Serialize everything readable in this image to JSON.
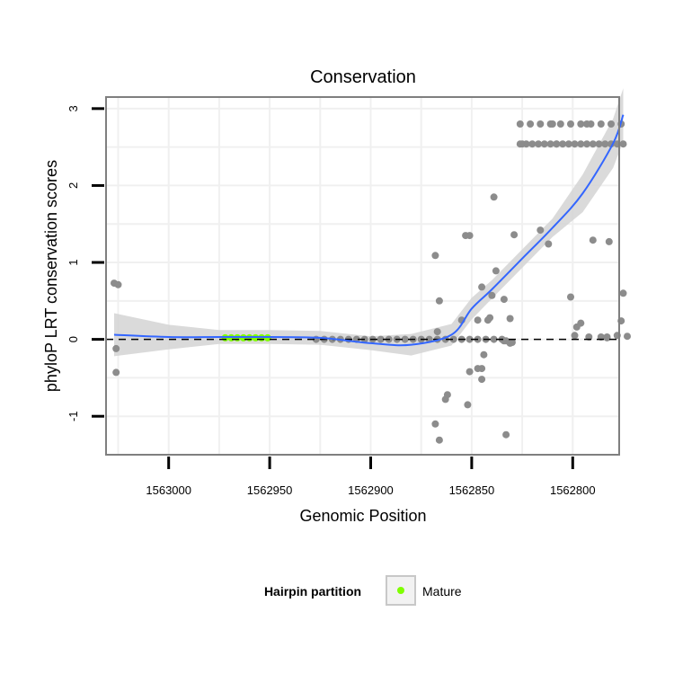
{
  "chart_data": {
    "type": "scatter",
    "title": "Conservation",
    "xlabel": "Genomic Position",
    "ylabel": "phyloP LRT conservation scores",
    "x_reversed": true,
    "xlim": [
      1562777,
      1563031
    ],
    "ylim": [
      -1.5,
      3.15
    ],
    "x_ticks": [
      1563000,
      1562950,
      1562900,
      1562850,
      1562800
    ],
    "y_ticks": [
      -1,
      0,
      1,
      2,
      3
    ],
    "grid": true,
    "reference_line_y": 0,
    "legend": {
      "title": "Hairpin partition",
      "entries": [
        "Mature"
      ],
      "position": "bottom"
    },
    "colors": {
      "points": "#8c8c8c",
      "mature": "#7fff00",
      "smooth": "#3366ff",
      "ribbon": "#d3d3d3",
      "panel_border": "#7f7f7f",
      "grid": "#f0f0f0"
    },
    "series": [
      {
        "type": "points",
        "x": [
          1563027,
          1563025,
          1563026,
          1563026,
          1562868,
          1562866,
          1562868,
          1562866,
          1562867,
          1562863,
          1562862,
          1562853,
          1562851,
          1562855,
          1562852,
          1562845,
          1562842,
          1562839,
          1562840,
          1562838,
          1562834,
          1562831,
          1562830,
          1562833,
          1562831,
          1562829,
          1562833,
          1562847,
          1562845,
          1562851,
          1562847,
          1562841,
          1562845,
          1562844,
          1562834,
          1562816,
          1562812,
          1562801,
          1562796,
          1562790,
          1562782,
          1562775,
          1562798,
          1562799,
          1562792,
          1562786,
          1562783,
          1562776,
          1562783,
          1562778,
          1562773,
          1562825,
          1562810,
          1562808,
          1562793
        ],
        "y": [
          0.73,
          0.71,
          -0.12,
          -0.43,
          1.09,
          0.5,
          -1.1,
          -1.31,
          0.1,
          -0.78,
          -0.72,
          1.35,
          1.35,
          0.25,
          -0.85,
          0.68,
          0.25,
          1.85,
          0.57,
          0.89,
          0.52,
          0.27,
          -0.04,
          -1.24,
          -0.05,
          1.36,
          -0.02,
          0.25,
          -0.52,
          -0.42,
          -0.38,
          0.28,
          -0.38,
          -0.2,
          -0.02,
          1.42,
          1.24,
          0.55,
          0.21,
          1.29,
          1.27,
          0.6,
          0.16,
          0.05,
          0.03,
          0.03,
          0.03,
          0.24,
          0.02,
          0.05,
          0.04,
          2.54,
          2.8,
          2.54,
          2.8
        ],
        "annotation": "additional points form horizontal bands at y ≈ 2.80 and y ≈ 2.54 for x from about 1562826 to 1562775, and a dense band at y ≈ 0 from about 1562927 to 1562833"
      },
      {
        "type": "smooth",
        "x": [
          1563027,
          1563000,
          1562975,
          1562950,
          1562925,
          1562900,
          1562880,
          1562860,
          1562850,
          1562840,
          1562825,
          1562810,
          1562795,
          1562780,
          1562775
        ],
        "y": [
          0.06,
          0.03,
          0.03,
          0.03,
          0.02,
          -0.05,
          -0.07,
          0.06,
          0.4,
          0.65,
          1.05,
          1.45,
          1.9,
          2.55,
          2.92
        ]
      }
    ]
  }
}
